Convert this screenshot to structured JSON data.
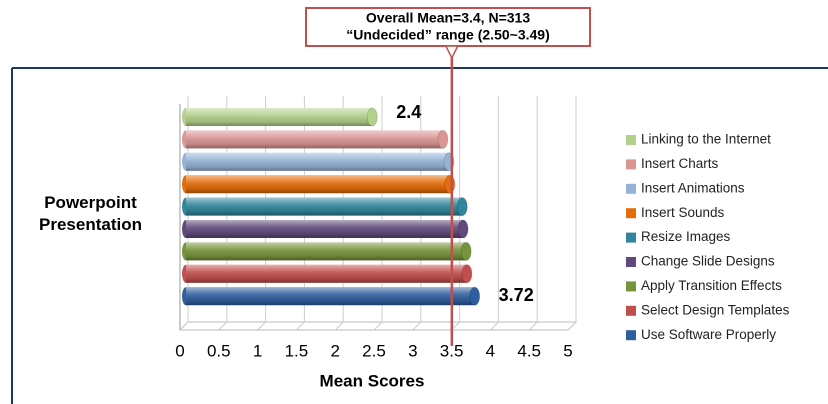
{
  "chart_data": {
    "type": "bar3d",
    "orientation": "horizontal",
    "ylabel": "Powerpoint Presentation",
    "xlabel": "Mean Scores",
    "annotation": [
      "Overall Mean=3.4, N=313",
      "“Undecided” range (2.50~3.49)"
    ],
    "mean_line": 3.4,
    "mean_color": "#c0504d",
    "categories": [
      "Linking to the Internet",
      "Insert Charts",
      "Insert Animations",
      "Insert Sounds",
      "Resize Images",
      "Change Slide Designs",
      "Apply Transition Effects",
      "Select Design Templates",
      "Use Software Properly"
    ],
    "values": [
      2.4,
      3.31,
      3.39,
      3.4,
      3.56,
      3.57,
      3.61,
      3.62,
      3.72
    ],
    "value_labels": [
      "2.4",
      null,
      null,
      null,
      null,
      null,
      null,
      null,
      "3.72"
    ],
    "colors": [
      "#b3d08c",
      "#d99694",
      "#95b3d7",
      "#e46c0a",
      "#31859c",
      "#604a7b",
      "#77933c",
      "#c0504d",
      "#2f5f9e"
    ],
    "xlim": [
      0,
      5
    ],
    "xticks": [
      0,
      0.5,
      1,
      1.5,
      2,
      2.5,
      3,
      3.5,
      4,
      4.5,
      5
    ],
    "grid": true,
    "legend": "right"
  }
}
